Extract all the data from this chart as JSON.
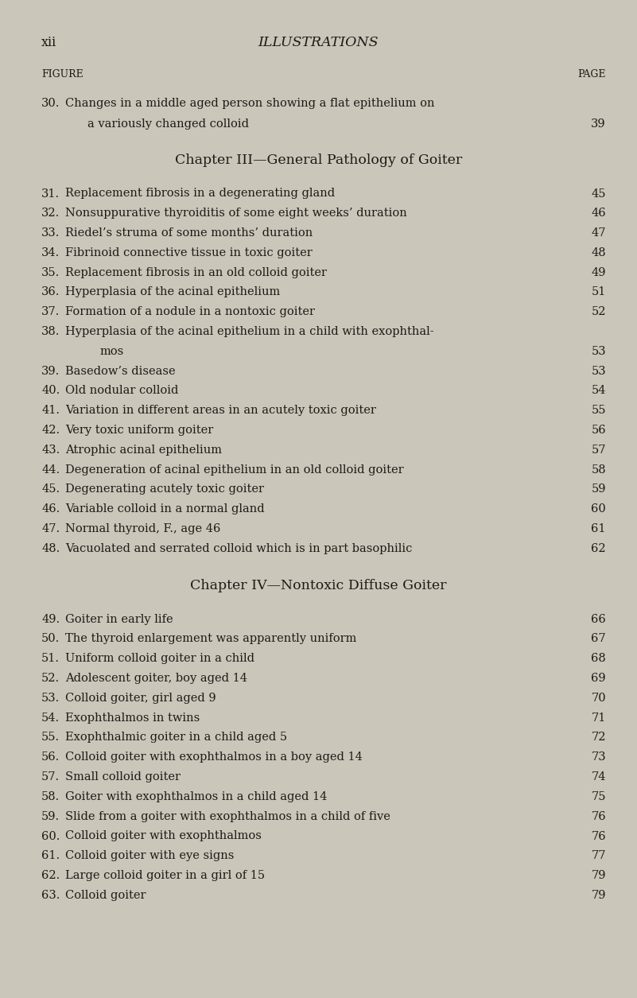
{
  "bg_color": "#cac6ba",
  "text_color": "#1e1a16",
  "page_header_left": "xii",
  "page_header_center": "ILLUSTRATIONS",
  "col_left_label": "FIGURE",
  "col_right_label": "PAGE",
  "intro_entry": {
    "num": "30.",
    "line1": "Changes in a middle aged person showing a flat epithelium on",
    "line2": "a variously changed colloid",
    "page": "39"
  },
  "chapter3_heading": "Chapter III—General Pathology of Goiter",
  "chapter3_entries": [
    {
      "num": "31.",
      "text": "Replacement fibrosis in a degenerating gland",
      "page": "45"
    },
    {
      "num": "32.",
      "text": "Nonsuppurative thyroiditis of some eight weeks’ duration",
      "page": "46"
    },
    {
      "num": "33.",
      "text": "Riedel’s struma of some months’ duration",
      "page": "47"
    },
    {
      "num": "34.",
      "text": "Fibrinoid connective tissue in toxic goiter",
      "page": "48"
    },
    {
      "num": "35.",
      "text": "Replacement fibrosis in an old colloid goiter",
      "page": "49"
    },
    {
      "num": "36.",
      "text": "Hyperplasia of the acinal epithelium",
      "page": "51"
    },
    {
      "num": "37.",
      "text": "Formation of a nodule in a nontoxic goiter",
      "page": "52"
    },
    {
      "num": "38.",
      "text": "Hyperplasia of the acinal epithelium in a child with exophthal-",
      "text2": "mos",
      "page": "53"
    },
    {
      "num": "39.",
      "text": "Basedow’s disease",
      "page": "53"
    },
    {
      "num": "40.",
      "text": "Old nodular colloid",
      "page": "54"
    },
    {
      "num": "41.",
      "text": "Variation in different areas in an acutely toxic goiter",
      "page": "55"
    },
    {
      "num": "42.",
      "text": "Very toxic uniform goiter",
      "page": "56"
    },
    {
      "num": "43.",
      "text": "Atrophic acinal epithelium",
      "page": "57"
    },
    {
      "num": "44.",
      "text": "Degeneration of acinal epithelium in an old colloid goiter",
      "page": "58"
    },
    {
      "num": "45.",
      "text": "Degenerating acutely toxic goiter",
      "page": "59"
    },
    {
      "num": "46.",
      "text": "Variable colloid in a normal gland",
      "page": "60"
    },
    {
      "num": "47.",
      "text": "Normal thyroid, F., age 46",
      "page": "61"
    },
    {
      "num": "48.",
      "text": "Vacuolated and serrated colloid which is in part basophilic",
      "page": "62"
    }
  ],
  "chapter4_heading": "Chapter IV—Nontoxic Diffuse Goiter",
  "chapter4_entries": [
    {
      "num": "49.",
      "text": "Goiter in early life",
      "page": "66"
    },
    {
      "num": "50.",
      "text": "The thyroid enlargement was apparently uniform",
      "page": "67"
    },
    {
      "num": "51.",
      "text": "Uniform colloid goiter in a child",
      "page": "68"
    },
    {
      "num": "52.",
      "text": "Adolescent goiter, boy aged 14",
      "page": "69"
    },
    {
      "num": "53.",
      "text": "Colloid goiter, girl aged 9",
      "page": "70"
    },
    {
      "num": "54.",
      "text": "Exophthalmos in twins",
      "page": "71"
    },
    {
      "num": "55.",
      "text": "Exophthalmic goiter in a child aged 5",
      "page": "72"
    },
    {
      "num": "56.",
      "text": "Colloid goiter with exophthalmos in a boy aged 14",
      "page": "73"
    },
    {
      "num": "57.",
      "text": "Small colloid goiter",
      "page": "74"
    },
    {
      "num": "58.",
      "text": "Goiter with exophthalmos in a child aged 14",
      "page": "75"
    },
    {
      "num": "59.",
      "text": "Slide from a goiter with exophthalmos in a child of five",
      "page": "76"
    },
    {
      "num": "60.",
      "text": "Colloid goiter with exophthalmos",
      "page": "76"
    },
    {
      "num": "61.",
      "text": "Colloid goiter with eye signs",
      "page": "77"
    },
    {
      "num": "62.",
      "text": "Large colloid goiter in a girl of 15",
      "page": "79"
    },
    {
      "num": "63.",
      "text": "Colloid goiter",
      "page": "79"
    }
  ],
  "fig_w": 8.01,
  "fig_h": 12.55,
  "dpi": 100
}
